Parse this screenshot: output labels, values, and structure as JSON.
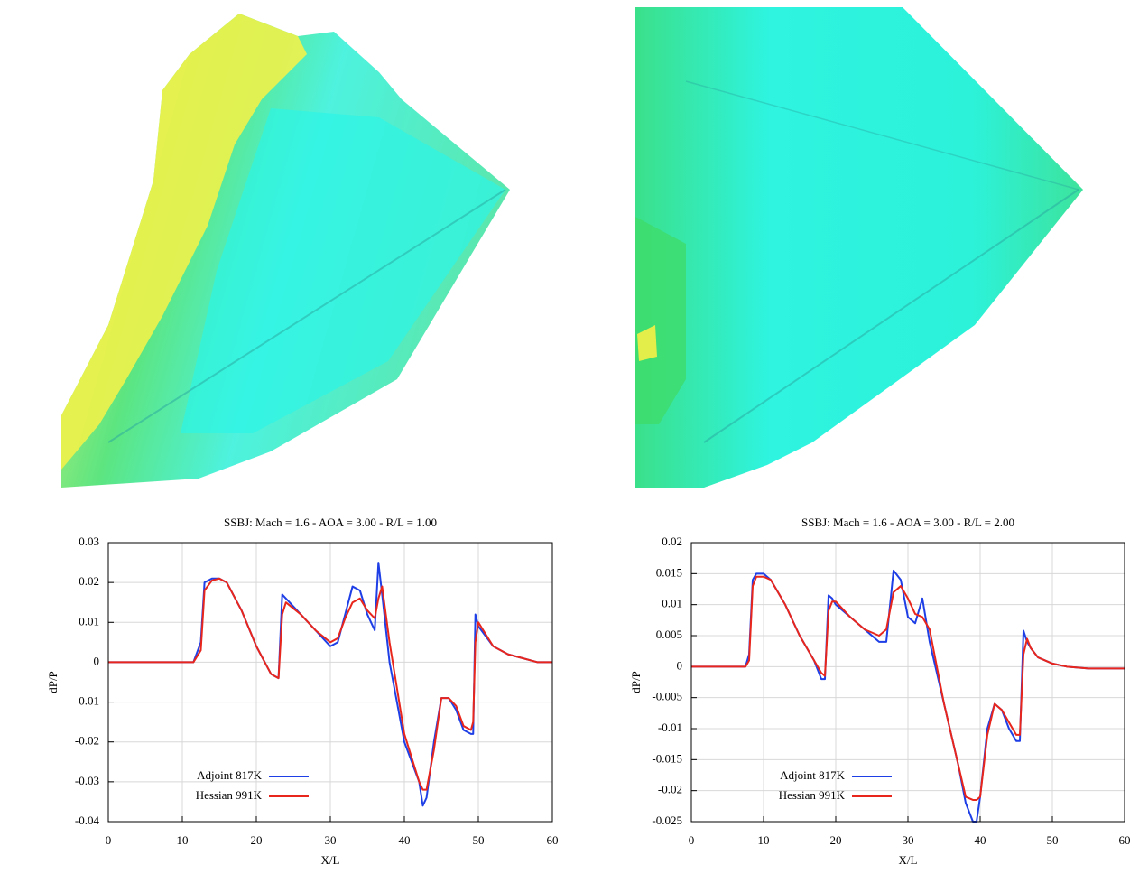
{
  "chart_data": [
    {
      "type": "line",
      "title": "SSBJ: Mach = 1.6 - AOA = 3.00 - R/L = 1.00",
      "x_label": "X/L",
      "y_label": "dP/P",
      "x": [
        0,
        11.5,
        12.5,
        13,
        14,
        15,
        16,
        18,
        20,
        22,
        23,
        23.5,
        24,
        26,
        28,
        30,
        31,
        32,
        33,
        34,
        35,
        36,
        36.5,
        37,
        38,
        40,
        42,
        42.5,
        43,
        44,
        45,
        46,
        47,
        48,
        49,
        49.3,
        49.6,
        50,
        52,
        54,
        56,
        58,
        60
      ],
      "series": [
        {
          "name": "Adjoint 817K",
          "color": "#1f3fe6",
          "values": [
            0,
            0,
            0.005,
            0.02,
            0.021,
            0.021,
            0.02,
            0.013,
            0.004,
            -0.003,
            -0.004,
            0.017,
            0.016,
            0.012,
            0.008,
            0.004,
            0.005,
            0.012,
            0.019,
            0.018,
            0.012,
            0.008,
            0.025,
            0.017,
            0.0,
            -0.02,
            -0.03,
            -0.036,
            -0.034,
            -0.02,
            -0.009,
            -0.009,
            -0.012,
            -0.017,
            -0.018,
            -0.018,
            0.012,
            0.009,
            0.004,
            0.002,
            0.001,
            0,
            0
          ]
        },
        {
          "name": "Hessian 991K",
          "color": "#e8261c",
          "values": [
            0,
            0,
            0.003,
            0.018,
            0.0205,
            0.021,
            0.02,
            0.013,
            0.004,
            -0.003,
            -0.004,
            0.012,
            0.015,
            0.012,
            0.008,
            0.005,
            0.006,
            0.011,
            0.015,
            0.016,
            0.013,
            0.011,
            0.016,
            0.019,
            0.005,
            -0.018,
            -0.03,
            -0.032,
            -0.032,
            -0.022,
            -0.009,
            -0.009,
            -0.011,
            -0.016,
            -0.017,
            -0.015,
            0.005,
            0.01,
            0.004,
            0.002,
            0.001,
            0,
            0
          ]
        }
      ],
      "xlim": [
        0,
        60
      ],
      "xticks": [
        0,
        10,
        20,
        30,
        40,
        50,
        60
      ],
      "ylim": [
        -0.04,
        0.03
      ],
      "yticks": [
        -0.04,
        -0.03,
        -0.02,
        -0.01,
        0,
        0.01,
        0.02,
        0.03
      ],
      "grid": true,
      "legend": "lower left"
    },
    {
      "type": "line",
      "title": "SSBJ: Mach = 1.6 - AOA = 3.00 - R/L = 2.00",
      "x_label": "X/L",
      "y_label": "dP/P",
      "x": [
        0,
        7.5,
        8,
        8.5,
        9,
        10,
        11,
        13,
        15,
        17,
        18,
        18.5,
        19,
        19.5,
        20,
        22,
        24,
        26,
        27,
        28,
        29,
        30,
        31,
        32,
        33,
        35,
        37,
        38,
        39,
        39.5,
        40,
        41,
        42,
        43,
        44,
        45,
        45.5,
        46,
        46.5,
        47,
        48,
        50,
        52,
        55,
        60
      ],
      "series": [
        {
          "name": "Adjoint 817K",
          "color": "#1f3fe6",
          "values": [
            0,
            0,
            0.002,
            0.014,
            0.015,
            0.015,
            0.014,
            0.01,
            0.005,
            0.001,
            -0.002,
            -0.002,
            0.0115,
            0.011,
            0.01,
            0.008,
            0.006,
            0.004,
            0.004,
            0.0155,
            0.014,
            0.008,
            0.007,
            0.011,
            0.004,
            -0.006,
            -0.016,
            -0.022,
            -0.025,
            -0.025,
            -0.021,
            -0.01,
            -0.006,
            -0.007,
            -0.01,
            -0.012,
            -0.012,
            0.0058,
            0.004,
            0.003,
            0.0015,
            0.0005,
            0,
            -0.0003,
            -0.0003
          ]
        },
        {
          "name": "Hessian 991K",
          "color": "#e8261c",
          "values": [
            0,
            0,
            0.001,
            0.013,
            0.0145,
            0.0145,
            0.014,
            0.01,
            0.005,
            0.001,
            -0.001,
            -0.0015,
            0.009,
            0.0105,
            0.0105,
            0.008,
            0.006,
            0.005,
            0.006,
            0.012,
            0.013,
            0.011,
            0.0085,
            0.008,
            0.006,
            -0.006,
            -0.016,
            -0.021,
            -0.0215,
            -0.0215,
            -0.021,
            -0.011,
            -0.006,
            -0.007,
            -0.009,
            -0.011,
            -0.011,
            0.002,
            0.0045,
            0.003,
            0.0015,
            0.0005,
            0,
            -0.0003,
            -0.0003
          ]
        }
      ],
      "xlim": [
        0,
        60
      ],
      "xticks": [
        0,
        10,
        20,
        30,
        40,
        50,
        60
      ],
      "ylim": [
        -0.025,
        0.02
      ],
      "yticks": [
        -0.025,
        -0.02,
        -0.015,
        -0.01,
        -0.005,
        0,
        0.005,
        0.01,
        0.015,
        0.02
      ],
      "grid": true,
      "legend": "lower left"
    }
  ]
}
